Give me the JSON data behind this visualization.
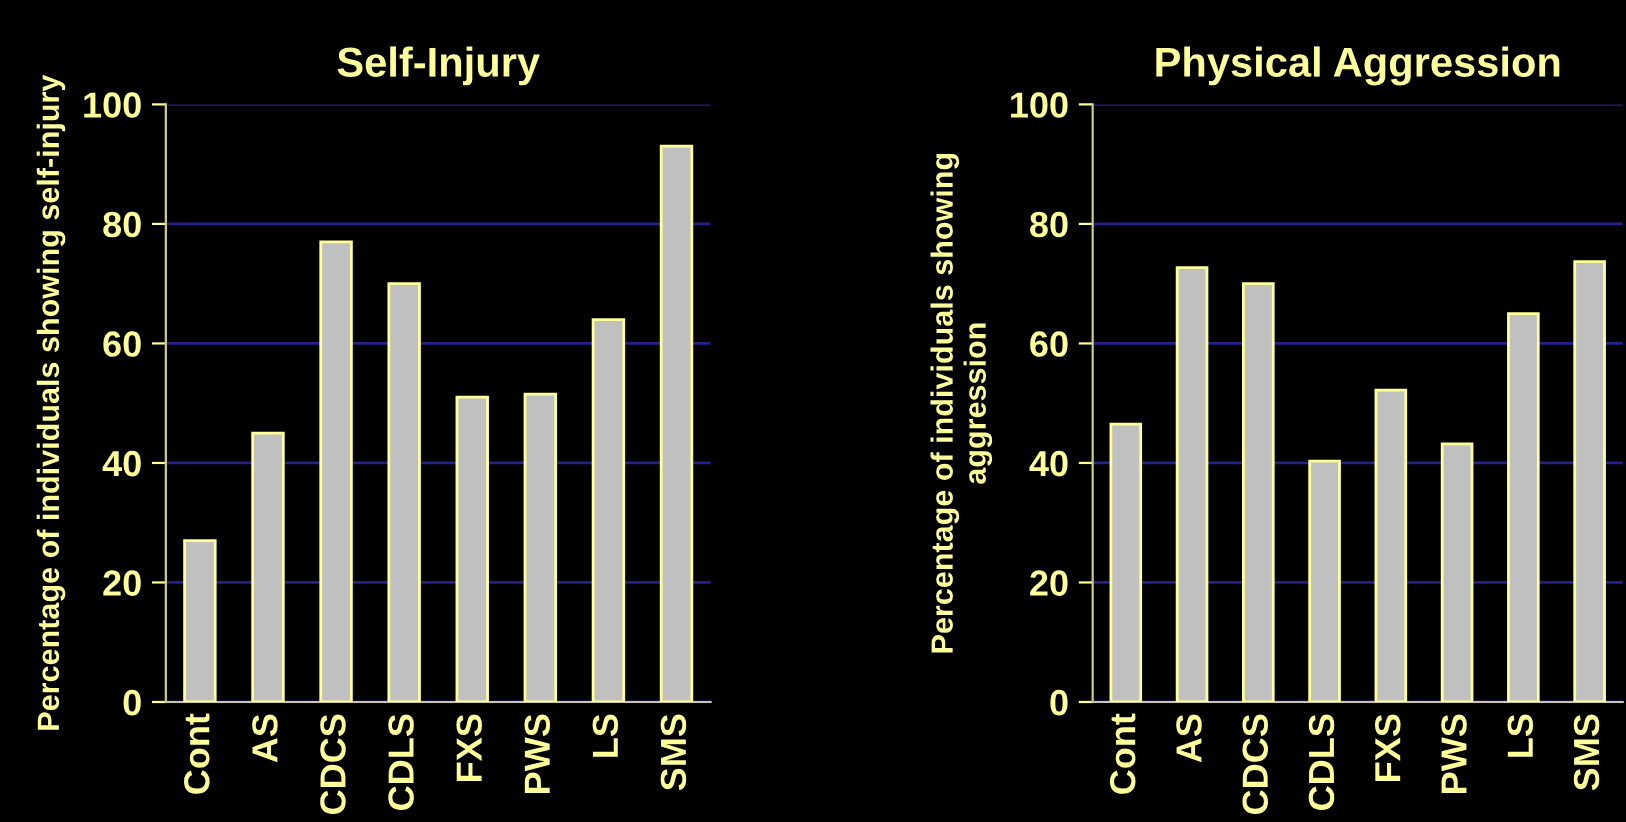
{
  "chart_data": [
    {
      "type": "bar",
      "title": "Self-Injury",
      "ylabel": "Percentage of individuals showing self-injury",
      "categories": [
        "Cont",
        "AS",
        "CDCS",
        "CDLS",
        "FXS",
        "PWS",
        "LS",
        "SMS"
      ],
      "series": [
        {
          "color": "#c0c0c0",
          "values": [
            27,
            45,
            77,
            70,
            51,
            51.5,
            64,
            93
          ]
        }
      ],
      "ylim": [
        0,
        100
      ],
      "yticks": [
        0,
        20,
        40,
        60,
        80,
        100
      ],
      "grid": "y"
    },
    {
      "type": "bar",
      "title": "Physical Aggression",
      "ylabel": "Percentage of individuals showing\naggression",
      "categories": [
        "Cont",
        "AS",
        "CDCS",
        "CDLS",
        "FXS",
        "PWS",
        "LS",
        "SMS"
      ],
      "series": [
        {
          "color": "#c0c0c0",
          "values": [
            46.5,
            72.7,
            70,
            40.3,
            52.2,
            43.2,
            65,
            73.7
          ]
        }
      ],
      "ylim": [
        0,
        100
      ],
      "yticks": [
        0,
        20,
        40,
        60,
        80,
        100
      ],
      "grid": "y"
    }
  ]
}
